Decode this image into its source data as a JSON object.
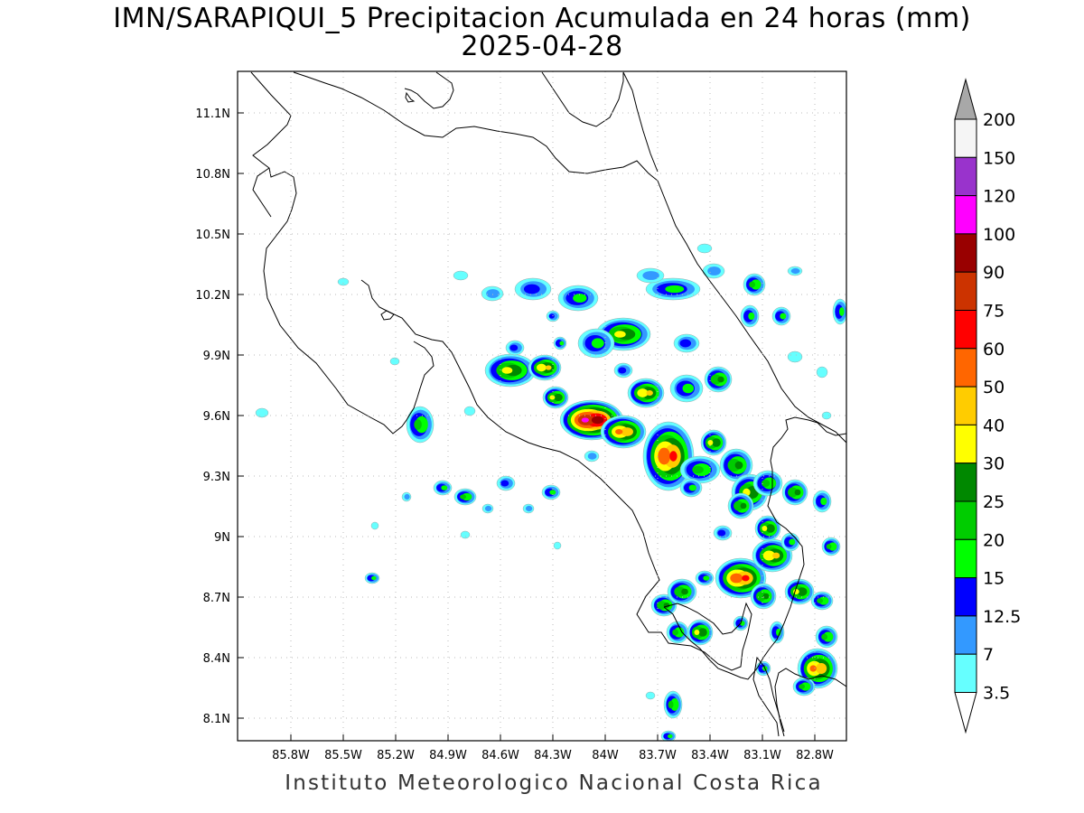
{
  "title": "IMN/SARAPIQUI_5 Precipitacion Acumulada en 24 horas (mm)",
  "date": "2025-04-28",
  "footer": "Instituto Meteorologico Nacional Costa Rica",
  "map": {
    "lon_range": [
      -86.0,
      -83.2
    ],
    "lat_range": [
      8.0,
      11.3
    ],
    "xlabels": [
      "85.8W",
      "85.5W",
      "85.2W",
      "84.9W",
      "84.6W",
      "84.3W",
      "84W",
      "83.7W",
      "83.4W",
      "83.1W",
      "82.8W"
    ],
    "xlabel_lons": [
      -85.8,
      -85.5,
      -85.2,
      -84.9,
      -84.6,
      -84.3,
      -84.0,
      -83.7,
      -83.4,
      -83.1,
      -82.8
    ],
    "ylabels": [
      "11.1N",
      "10.8N",
      "10.5N",
      "10.2N",
      "9.9N",
      "9.6N",
      "9.3N",
      "9N",
      "8.7N",
      "8.4N",
      "8.1N"
    ],
    "ylabel_lats": [
      11.1,
      10.8,
      10.5,
      10.2,
      9.9,
      9.6,
      9.3,
      9.0,
      8.7,
      8.4,
      8.1
    ],
    "grid": true
  },
  "legend": {
    "labels": [
      "200",
      "150",
      "120",
      "100",
      "90",
      "75",
      "60",
      "50",
      "40",
      "30",
      "25",
      "20",
      "15",
      "12.5",
      "7",
      "3.5"
    ],
    "colors": [
      "#f5f5f5",
      "#9933cc",
      "#ff00ff",
      "#990000",
      "#cc3300",
      "#ff0000",
      "#ff6600",
      "#ffcc00",
      "#ffff00",
      "#008800",
      "#00cc00",
      "#00ff00",
      "#0000ff",
      "#3399ff",
      "#66ffff"
    ],
    "over_color": "#a8a8a8"
  }
}
